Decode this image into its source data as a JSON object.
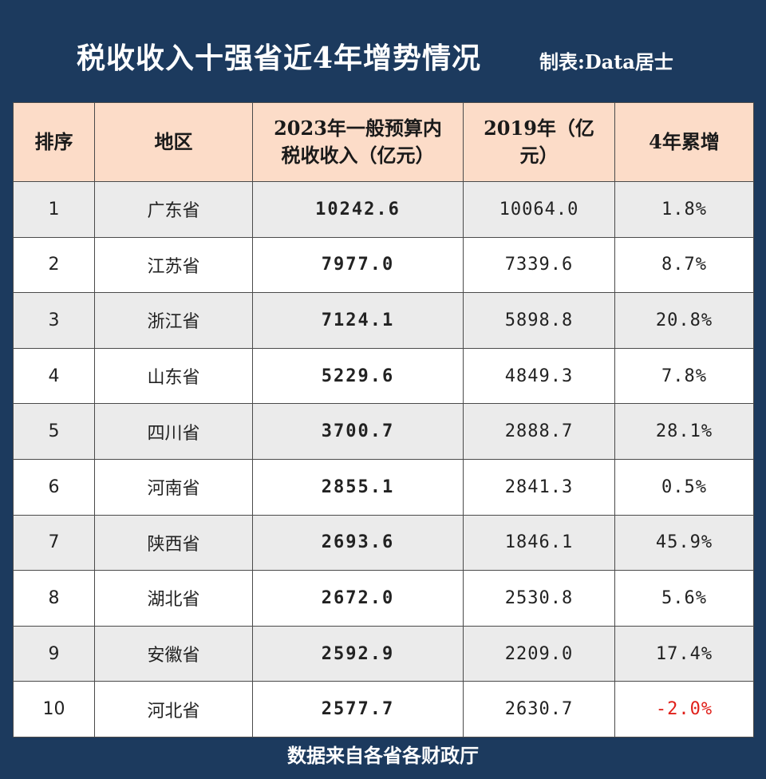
{
  "title": "税收收入十强省近4年增势情况",
  "credit": "制表:Data居士",
  "columns": {
    "rank": "排序",
    "region": "地区",
    "revenue_2023_line1": "2023年一般预算内",
    "revenue_2023_line2": "税收收入（亿元）",
    "revenue_2019_line1": "2019年（亿",
    "revenue_2019_line2": "元）",
    "growth": "4年累增"
  },
  "rows": [
    {
      "rank": "1",
      "region": "广东省",
      "v2023": "10242.6",
      "v2019": "10064.0",
      "growth": "1.8%"
    },
    {
      "rank": "2",
      "region": "江苏省",
      "v2023": "7977.0",
      "v2019": "7339.6",
      "growth": "8.7%"
    },
    {
      "rank": "3",
      "region": "浙江省",
      "v2023": "7124.1",
      "v2019": "5898.8",
      "growth": "20.8%"
    },
    {
      "rank": "4",
      "region": "山东省",
      "v2023": "5229.6",
      "v2019": "4849.3",
      "growth": "7.8%"
    },
    {
      "rank": "5",
      "region": "四川省",
      "v2023": "3700.7",
      "v2019": "2888.7",
      "growth": "28.1%"
    },
    {
      "rank": "6",
      "region": "河南省",
      "v2023": "2855.1",
      "v2019": "2841.3",
      "growth": "0.5%"
    },
    {
      "rank": "7",
      "region": "陕西省",
      "v2023": "2693.6",
      "v2019": "1846.1",
      "growth": "45.9%"
    },
    {
      "rank": "8",
      "region": "湖北省",
      "v2023": "2672.0",
      "v2019": "2530.8",
      "growth": "5.6%"
    },
    {
      "rank": "9",
      "region": "安徽省",
      "v2023": "2592.9",
      "v2019": "2209.0",
      "growth": "17.4%"
    },
    {
      "rank": "10",
      "region": "河北省",
      "v2023": "2577.7",
      "v2019": "2630.7",
      "growth": "-2.0%"
    }
  ],
  "negative_color": "#e0201a",
  "header_bg": "#fcdcc8",
  "frame_color": "#1c3a5e",
  "footer": "数据来自各省各财政厅"
}
